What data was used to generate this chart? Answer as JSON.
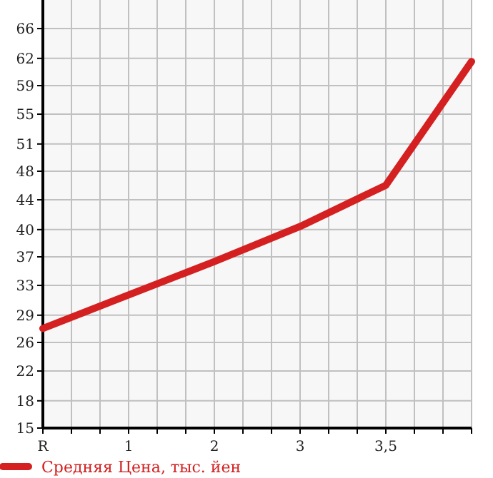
{
  "chart_data": {
    "type": "line",
    "categories": [
      "R",
      "1",
      "2",
      "3",
      "3,5",
      null
    ],
    "series": [
      {
        "name": "Средняя Цена, тыс. йен",
        "color": "#d42020",
        "values": [
          27.8,
          32.1,
          36.4,
          40.9,
          46.2,
          62.1
        ]
      }
    ],
    "ylim": [
      15,
      70
    ],
    "yticks": [
      15,
      {
        "value": 18.5,
        "label": "18"
      },
      {
        "value": 22.33,
        "label": "22"
      },
      26,
      {
        "value": 29.5,
        "label": "29"
      },
      {
        "value": 33.33,
        "label": "33"
      },
      37,
      {
        "value": 40.5,
        "label": "40"
      },
      {
        "value": 44.33,
        "label": "44"
      },
      48,
      {
        "value": 51.5,
        "label": "51"
      },
      {
        "value": 55.33,
        "label": "55"
      },
      59,
      {
        "value": 62.5,
        "label": "62"
      },
      {
        "value": 66.33,
        "label": "66"
      }
    ],
    "grid": true,
    "legend": "bottom",
    "marker": "none",
    "line_style": "solid"
  }
}
